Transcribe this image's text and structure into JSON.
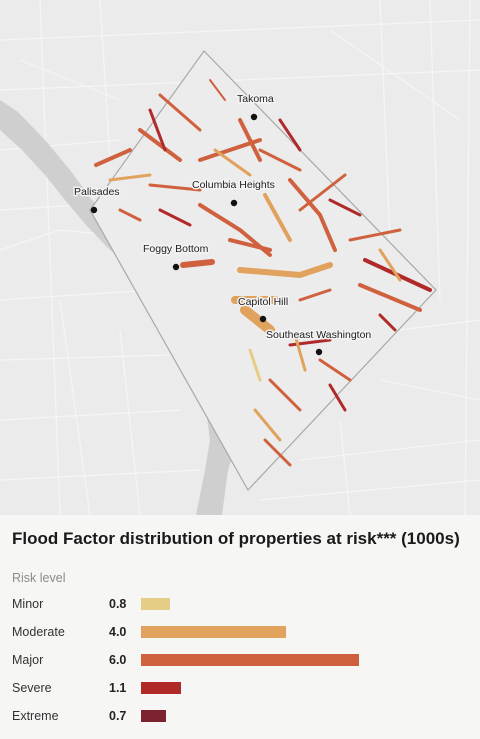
{
  "map": {
    "labels": [
      {
        "id": "takoma",
        "text": "Takoma"
      },
      {
        "id": "palisades",
        "text": "Palisades"
      },
      {
        "id": "columbia-heights",
        "text": "Columbia Heights"
      },
      {
        "id": "foggy-bottom",
        "text": "Foggy Bottom"
      },
      {
        "id": "capitol-hill",
        "text": "Capitol Hill"
      },
      {
        "id": "southeast-washington",
        "text": "Southeast Washington"
      }
    ]
  },
  "chart_data": {
    "type": "bar",
    "title": "Flood Factor distribution of properties at risk*** (1000s)",
    "xlabel": "",
    "ylabel": "Risk level",
    "categories": [
      "Minor",
      "Moderate",
      "Major",
      "Severe",
      "Extreme"
    ],
    "values": [
      0.8,
      4.0,
      6.0,
      1.1,
      0.7
    ],
    "value_labels": [
      "0.8",
      "4.0",
      "6.0",
      "1.1",
      "0.7"
    ],
    "colors": [
      "#e6cd86",
      "#e0a25c",
      "#d0613f",
      "#b02a2a",
      "#7d2231"
    ],
    "xlim": [
      0,
      6
    ]
  }
}
